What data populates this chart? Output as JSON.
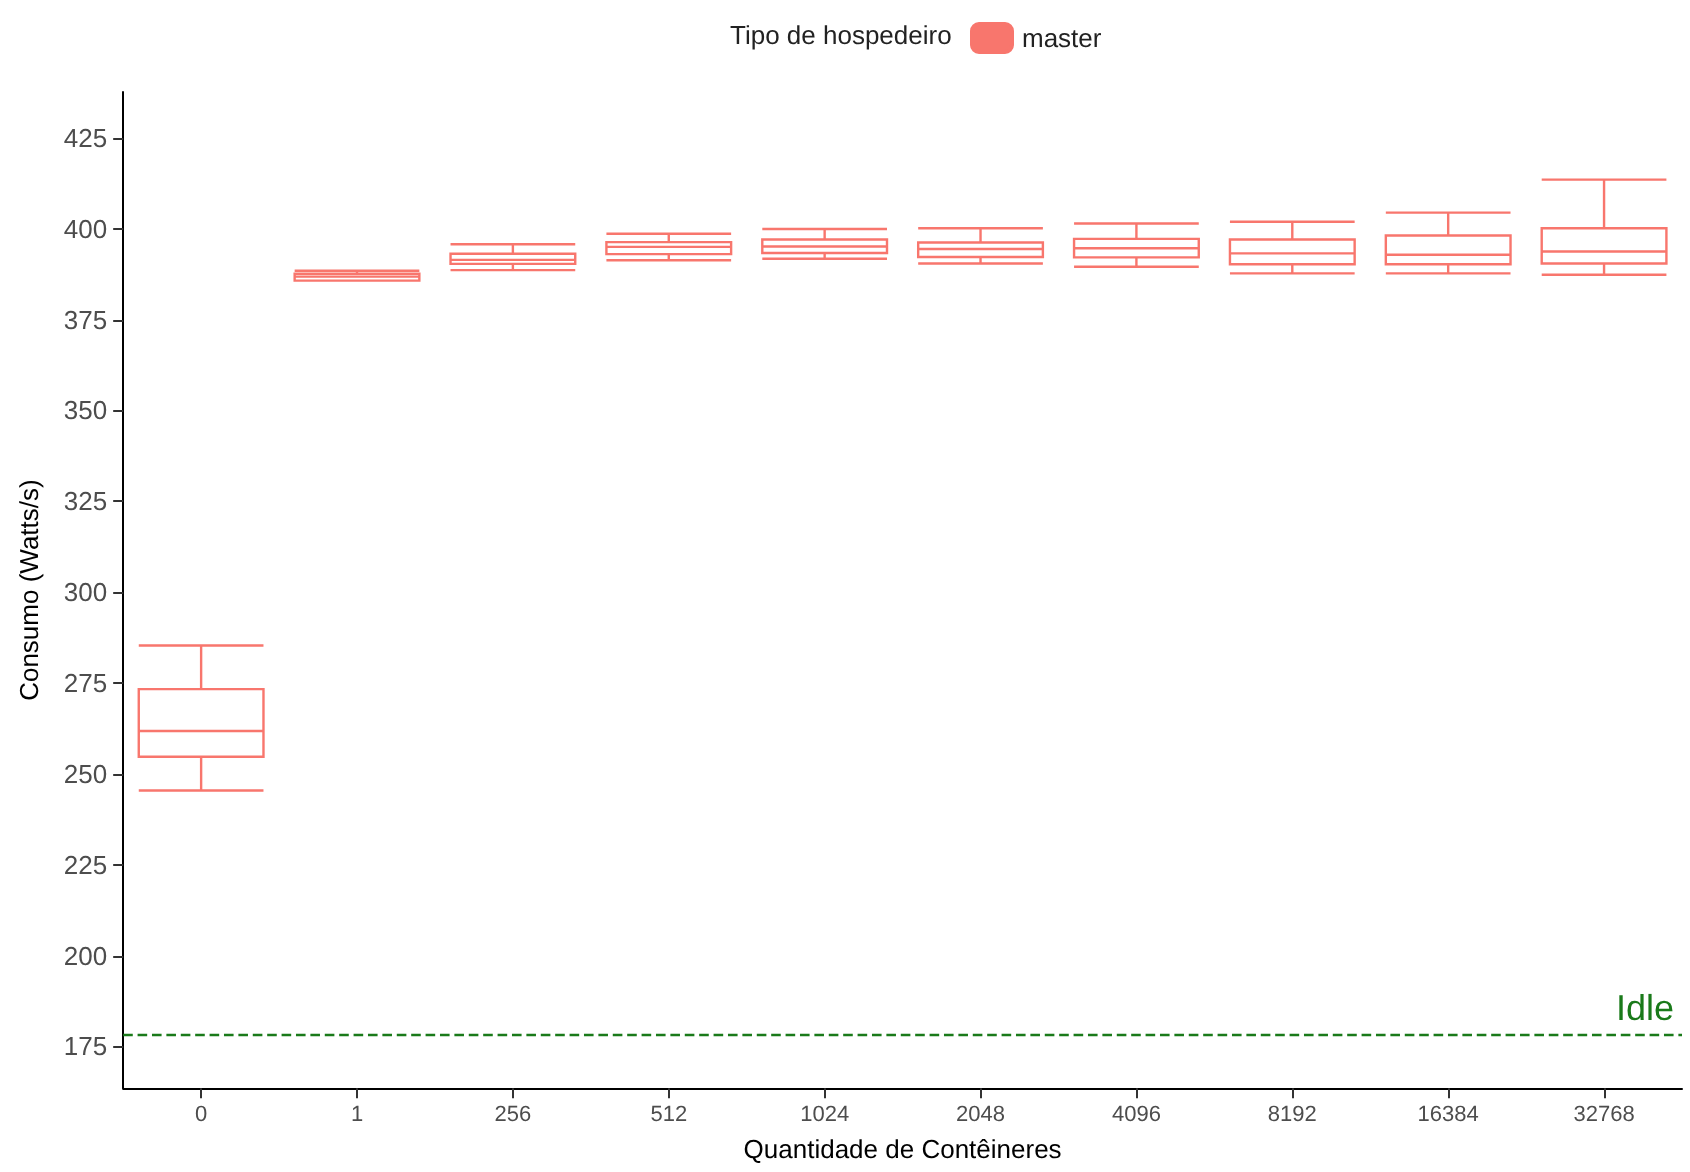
{
  "chart_data": {
    "type": "box",
    "xlabel": "Quantidade de Contêineres",
    "ylabel": "Consumo (Watts/s)",
    "legend_title": "Tipo de hospedeiro",
    "legend": "top",
    "categories": [
      "0",
      "1",
      "256",
      "512",
      "1024",
      "2048",
      "4096",
      "8192",
      "16384",
      "32768"
    ],
    "series": [
      {
        "name": "master",
        "color": "#f8766d",
        "boxes": [
          {
            "low": 245.4,
            "q1": 254.7,
            "median": 261.8,
            "q3": 273.3,
            "high": 285.3
          },
          {
            "low": 385.7,
            "q1": 385.7,
            "median": 386.8,
            "q3": 387.6,
            "high": 388.4
          },
          {
            "low": 388.6,
            "q1": 390.3,
            "median": 391.4,
            "q3": 393.1,
            "high": 395.7
          },
          {
            "low": 391.3,
            "q1": 393.0,
            "median": 395.0,
            "q3": 396.3,
            "high": 398.6
          },
          {
            "low": 391.7,
            "q1": 393.3,
            "median": 395.1,
            "q3": 397.0,
            "high": 399.9
          },
          {
            "low": 390.4,
            "q1": 392.2,
            "median": 394.4,
            "q3": 396.2,
            "high": 400.1
          },
          {
            "low": 389.5,
            "q1": 392.1,
            "median": 394.6,
            "q3": 397.2,
            "high": 401.4
          },
          {
            "low": 387.7,
            "q1": 390.2,
            "median": 393.2,
            "q3": 397.0,
            "high": 401.9
          },
          {
            "low": 387.7,
            "q1": 390.2,
            "median": 392.8,
            "q3": 398.1,
            "high": 404.4
          },
          {
            "low": 387.3,
            "q1": 390.4,
            "median": 393.7,
            "q3": 400.1,
            "high": 413.5
          }
        ]
      }
    ],
    "ylim": [
      163.5,
      437.6
    ],
    "yticks": [
      175,
      200,
      225,
      250,
      275,
      300,
      325,
      350,
      375,
      400,
      425
    ],
    "grid": false,
    "ref_lines": [
      {
        "axis": "y",
        "value": 178.3,
        "label": "Idle",
        "color": "#1a7a1a",
        "line_style": "dashed"
      }
    ]
  }
}
